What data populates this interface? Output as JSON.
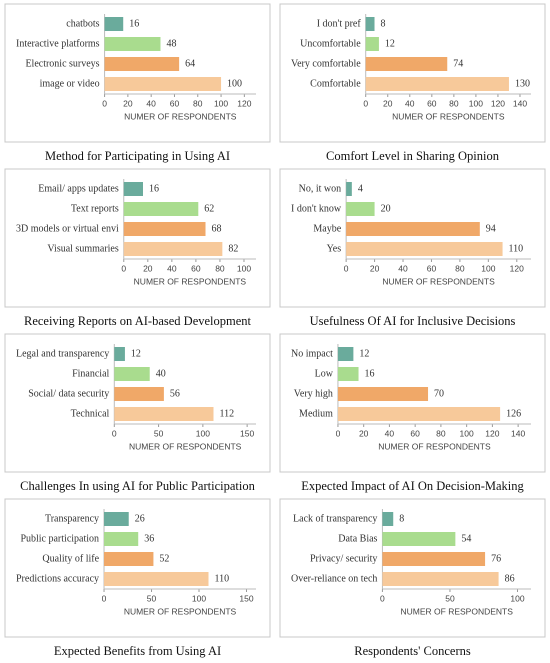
{
  "chart_data": [
    {
      "type": "bar",
      "orientation": "horizontal",
      "title": "Method for Participating in Using AI",
      "x_label": "NUMER OF RESPONDENTS",
      "categories": [
        "chatbots",
        "Interactive  platforms",
        "Electronic surveys",
        "image or video"
      ],
      "values": [
        16,
        48,
        64,
        100
      ],
      "colors": [
        "#6aab9c",
        "#a9dc8e",
        "#f0a868",
        "#f7c99a"
      ],
      "xlim": [
        0,
        130
      ],
      "xticks": [
        0,
        20,
        40,
        60,
        80,
        100,
        120
      ]
    },
    {
      "type": "bar",
      "orientation": "horizontal",
      "title": "Comfort Level in Sharing Opinion",
      "x_label": "NUMER OF RESPONDENTS",
      "categories": [
        "I don't pref",
        "Uncomfortable",
        "Very comfortable",
        "Comfortable"
      ],
      "values": [
        8,
        12,
        74,
        130
      ],
      "colors": [
        "#6aab9c",
        "#a9dc8e",
        "#f0a868",
        "#f7c99a"
      ],
      "xlim": [
        0,
        150
      ],
      "xticks": [
        0,
        20,
        40,
        60,
        80,
        100,
        120,
        140
      ]
    },
    {
      "type": "bar",
      "orientation": "horizontal",
      "title": "Receiving Reports on AI-based Development",
      "x_label": "NUMER OF RESPONDENTS",
      "categories": [
        "Email/ apps updates",
        "Text reports",
        "3D models or virtual envi",
        "Visual summaries"
      ],
      "values": [
        16,
        62,
        68,
        82
      ],
      "colors": [
        "#6aab9c",
        "#a9dc8e",
        "#f0a868",
        "#f7c99a"
      ],
      "xlim": [
        0,
        110
      ],
      "xticks": [
        0,
        20,
        40,
        60,
        80,
        100
      ]
    },
    {
      "type": "bar",
      "orientation": "horizontal",
      "title": "Usefulness Of AI for Inclusive Decisions",
      "x_label": "NUMER OF RESPONDENTS",
      "categories": [
        "No, it won",
        "I don't know",
        "Maybe",
        "Yes"
      ],
      "values": [
        4,
        20,
        94,
        110
      ],
      "colors": [
        "#6aab9c",
        "#a9dc8e",
        "#f0a868",
        "#f7c99a"
      ],
      "xlim": [
        0,
        130
      ],
      "xticks": [
        0,
        20,
        40,
        60,
        80,
        100,
        120
      ]
    },
    {
      "type": "bar",
      "orientation": "horizontal",
      "title": "Challenges In using AI for Public Participation",
      "x_label": "NUMER OF RESPONDENTS",
      "categories": [
        "Legal and transparency",
        "Financial",
        "Social/ data security",
        "Technical"
      ],
      "values": [
        12,
        40,
        56,
        112
      ],
      "colors": [
        "#6aab9c",
        "#a9dc8e",
        "#f0a868",
        "#f7c99a"
      ],
      "xlim": [
        0,
        160
      ],
      "xticks": [
        0,
        50,
        100,
        150
      ]
    },
    {
      "type": "bar",
      "orientation": "horizontal",
      "title": "Expected Impact of AI On Decision-Making",
      "x_label": "NUMER OF RESPONDENTS",
      "categories": [
        "No impact",
        "Low",
        "Very high",
        "Medium"
      ],
      "values": [
        12,
        16,
        70,
        126
      ],
      "colors": [
        "#6aab9c",
        "#a9dc8e",
        "#f0a868",
        "#f7c99a"
      ],
      "xlim": [
        0,
        150
      ],
      "xticks": [
        0,
        20,
        40,
        60,
        80,
        100,
        120,
        140
      ]
    },
    {
      "type": "bar",
      "orientation": "horizontal",
      "title": "Expected Benefits from Using AI",
      "x_label": "NUMER OF RESPONDENTS",
      "categories": [
        "Transparency",
        "Public participation",
        "Quality of life",
        "Predictions accuracy"
      ],
      "values": [
        26,
        36,
        52,
        110
      ],
      "colors": [
        "#6aab9c",
        "#a9dc8e",
        "#f0a868",
        "#f7c99a"
      ],
      "xlim": [
        0,
        160
      ],
      "xticks": [
        0,
        50,
        100,
        150
      ]
    },
    {
      "type": "bar",
      "orientation": "horizontal",
      "title": "Respondents' Concerns",
      "x_label": "NUMER OF RESPONDENTS",
      "categories": [
        "Lack of transparency",
        "Data Bias",
        "Privacy/ security",
        "Over-reliance on tech"
      ],
      "values": [
        8,
        54,
        76,
        86
      ],
      "colors": [
        "#6aab9c",
        "#a9dc8e",
        "#f0a868",
        "#f7c99a"
      ],
      "xlim": [
        0,
        110
      ],
      "xticks": [
        0,
        50,
        100
      ]
    }
  ]
}
